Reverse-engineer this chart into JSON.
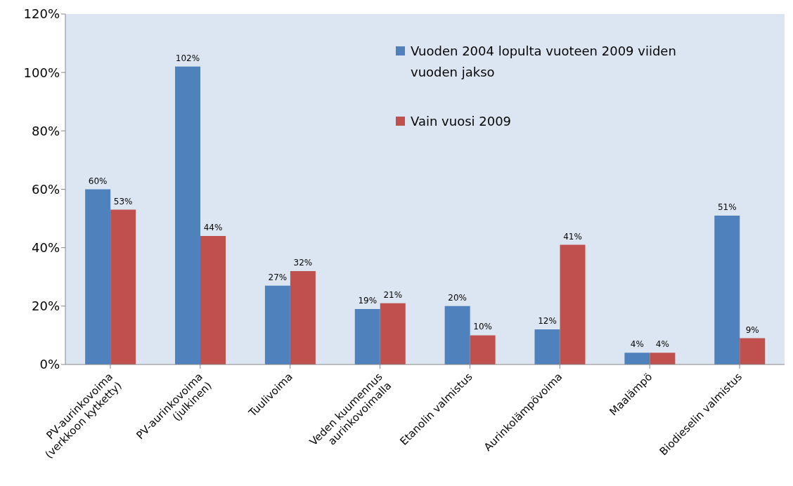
{
  "chart_data": {
    "type": "bar",
    "categories": [
      "PV-aurinkovoima\n(verkkoon kytketty)",
      "PV-aurinkovoima\n(julkinen)",
      "Tuulivoima",
      "Veden kuumennus\naurinkovoimalla",
      "Etanolin valmistus",
      "Aurinkolämpövoima",
      "Maalämpö",
      "Biodieselin valmistus"
    ],
    "series": [
      {
        "name": "Vuoden 2004 lopulta vuoteen 2009 viiden vuoden jakso",
        "color": "#4f81bd",
        "values": [
          60,
          102,
          27,
          19,
          20,
          12,
          4,
          51
        ],
        "value_labels": [
          "60%",
          "102%",
          "27%",
          "19%",
          "20%",
          "12%",
          "4%",
          "51%"
        ]
      },
      {
        "name": "Vain vuosi 2009",
        "color": "#c0504d",
        "values": [
          53,
          44,
          32,
          21,
          10,
          41,
          4,
          9
        ],
        "value_labels": [
          "53%",
          "44%",
          "32%",
          "21%",
          "10%",
          "41%",
          "4%",
          "9%"
        ]
      }
    ],
    "ylim": [
      0,
      120
    ],
    "yticks": [
      {
        "value": 0,
        "label": "0%"
      },
      {
        "value": 20,
        "label": "20%"
      },
      {
        "value": 40,
        "label": "40%"
      },
      {
        "value": 60,
        "label": "60%"
      },
      {
        "value": 80,
        "label": "80%"
      },
      {
        "value": 100,
        "label": "100%"
      },
      {
        "value": 120,
        "label": "120%"
      }
    ],
    "grid": false,
    "legend": "top right"
  }
}
